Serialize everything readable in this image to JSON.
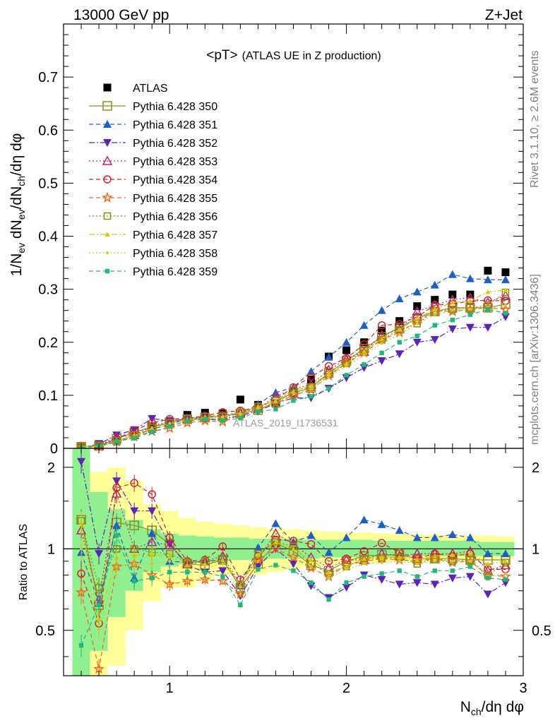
{
  "header": {
    "left": "13000 GeV pp",
    "right": "Z+Jet"
  },
  "side_labels": {
    "rivet": "Rivet 3.1.10, ≥ 2.6M events",
    "mcplots": "mcplots.cern.ch [arXiv:1306.3436]"
  },
  "watermark": "ATLAS_2019_I1736531",
  "colors": {
    "ATLAS": "#000000",
    "s350": "#8c8c1e",
    "s351": "#1f5fc4",
    "s352": "#5a24b4",
    "s353": "#b8277a",
    "s354": "#d4202a",
    "s355": "#ee6a1c",
    "s356": "#8a8a14",
    "s357": "#d6c800",
    "s358": "#c8c832",
    "s359": "#22b87c",
    "band_inner": "#90f090",
    "band_outer": "#ffff99"
  },
  "chart_data": [
    {
      "type": "scatter",
      "panel": "main",
      "title": "<pT> (ATLAS UE in Z production)",
      "title_main": "<pT>",
      "title_sub": "(ATLAS UE in Z production)",
      "ylabel": "1/N_ev dN_ev/dN_ch/dη dφ",
      "ylabel_parts": {
        "a": "1/N",
        "a_sub": "ev",
        "b": " dN",
        "b_sub": "ev",
        "c": "/dN",
        "c_sub": "ch",
        "d": "/dη dφ"
      },
      "xlim": [
        0.4,
        3.0
      ],
      "ylim": [
        0.0,
        0.8
      ],
      "yticks": [
        0,
        0.1,
        0.2,
        0.3,
        0.4,
        0.5,
        0.6,
        0.7
      ],
      "ytick_labels": [
        "0",
        "0.1",
        "0.2",
        "0.3",
        "0.4",
        "0.5",
        "0.6",
        "0.7"
      ],
      "legend_position": "top-left",
      "grid": false,
      "x": [
        0.5,
        0.6,
        0.7,
        0.8,
        0.9,
        1.0,
        1.1,
        1.2,
        1.3,
        1.4,
        1.5,
        1.6,
        1.7,
        1.8,
        1.9,
        2.0,
        2.1,
        2.2,
        2.3,
        2.4,
        2.5,
        2.6,
        2.7,
        2.8,
        2.9
      ],
      "series": [
        {
          "name": "ATLAS",
          "key": "ATLAS",
          "marker": "square",
          "dash": "none",
          "values": [
            0.002,
            0.008,
            0.014,
            0.025,
            0.04,
            0.05,
            0.063,
            0.067,
            0.066,
            0.092,
            0.082,
            0.085,
            0.108,
            0.13,
            0.173,
            0.185,
            0.2,
            0.222,
            0.24,
            0.268,
            0.28,
            0.29,
            0.29,
            0.335,
            0.332
          ]
        },
        {
          "name": "Pythia 6.428 350",
          "key": "s350",
          "marker": "square-open",
          "dash": "solid",
          "values": [
            0.003,
            0.005,
            0.018,
            0.03,
            0.041,
            0.048,
            0.055,
            0.058,
            0.06,
            0.066,
            0.072,
            0.088,
            0.105,
            0.114,
            0.142,
            0.165,
            0.188,
            0.21,
            0.228,
            0.245,
            0.258,
            0.265,
            0.265,
            0.265,
            0.272
          ]
        },
        {
          "name": "Pythia 6.428 351",
          "key": "s351",
          "marker": "triangle-up",
          "dash": "dashed",
          "values": [
            0.001,
            0.004,
            0.013,
            0.024,
            0.036,
            0.045,
            0.056,
            0.06,
            0.06,
            0.066,
            0.083,
            0.105,
            0.115,
            0.145,
            0.172,
            0.2,
            0.232,
            0.26,
            0.282,
            0.295,
            0.308,
            0.328,
            0.32,
            0.318,
            0.318
          ]
        },
        {
          "name": "Pythia 6.428 352",
          "key": "s352",
          "marker": "triangle-down",
          "dash": "dashdot",
          "values": [
            0.001,
            0.008,
            0.025,
            0.035,
            0.056,
            0.052,
            0.055,
            0.055,
            0.055,
            0.062,
            0.07,
            0.085,
            0.095,
            0.095,
            0.113,
            0.133,
            0.152,
            0.165,
            0.178,
            0.2,
            0.205,
            0.225,
            0.228,
            0.228,
            0.248
          ]
        },
        {
          "name": "Pythia 6.428 353",
          "key": "s353",
          "marker": "triangle-open",
          "dash": "dotted",
          "values": [
            0.003,
            0.005,
            0.022,
            0.025,
            0.042,
            0.051,
            0.056,
            0.06,
            0.062,
            0.068,
            0.075,
            0.098,
            0.112,
            0.12,
            0.148,
            0.168,
            0.182,
            0.213,
            0.225,
            0.258,
            0.27,
            0.28,
            0.284,
            0.275,
            0.288
          ]
        },
        {
          "name": "Pythia 6.428 354",
          "key": "s354",
          "marker": "circle-open",
          "dash": "dashed",
          "values": [
            0.003,
            0.004,
            0.018,
            0.034,
            0.048,
            0.055,
            0.057,
            0.061,
            0.068,
            0.071,
            0.077,
            0.092,
            0.115,
            0.135,
            0.155,
            0.17,
            0.196,
            0.232,
            0.234,
            0.248,
            0.27,
            0.272,
            0.278,
            0.279,
            0.278
          ]
        },
        {
          "name": "Pythia 6.428 355",
          "key": "s355",
          "marker": "star",
          "dash": "dashed",
          "values": [
            0.003,
            0.003,
            0.012,
            0.022,
            0.032,
            0.038,
            0.048,
            0.052,
            0.05,
            0.063,
            0.075,
            0.085,
            0.1,
            0.11,
            0.137,
            0.16,
            0.18,
            0.205,
            0.218,
            0.24,
            0.258,
            0.258,
            0.262,
            0.265,
            0.262
          ]
        },
        {
          "name": "Pythia 6.428 356",
          "key": "s356",
          "marker": "square-open-small",
          "dash": "dotted",
          "values": [
            0.003,
            0.006,
            0.014,
            0.025,
            0.039,
            0.048,
            0.056,
            0.06,
            0.06,
            0.068,
            0.079,
            0.09,
            0.11,
            0.115,
            0.14,
            0.16,
            0.185,
            0.205,
            0.223,
            0.235,
            0.258,
            0.262,
            0.265,
            0.27,
            0.294
          ]
        },
        {
          "name": "Pythia 6.428 357",
          "key": "s357",
          "marker": "tri-small",
          "dash": "dashdot",
          "values": [
            0.003,
            0.004,
            0.013,
            0.024,
            0.038,
            0.047,
            0.055,
            0.059,
            0.06,
            0.067,
            0.078,
            0.09,
            0.108,
            0.118,
            0.142,
            0.16,
            0.183,
            0.206,
            0.224,
            0.245,
            0.262,
            0.275,
            0.278,
            0.295,
            0.298
          ]
        },
        {
          "name": "Pythia 6.428 358",
          "key": "s358",
          "marker": "dot",
          "dash": "dotted",
          "values": [
            0.002,
            0.004,
            0.012,
            0.022,
            0.035,
            0.045,
            0.053,
            0.057,
            0.058,
            0.063,
            0.074,
            0.087,
            0.102,
            0.112,
            0.135,
            0.155,
            0.176,
            0.198,
            0.215,
            0.235,
            0.252,
            0.26,
            0.262,
            0.266,
            0.27
          ]
        },
        {
          "name": "Pythia 6.428 359",
          "key": "s359",
          "marker": "square-small",
          "dash": "dashed",
          "values": [
            0.001,
            0.005,
            0.013,
            0.019,
            0.031,
            0.041,
            0.052,
            0.055,
            0.052,
            0.057,
            0.069,
            0.074,
            0.09,
            0.098,
            0.113,
            0.138,
            0.158,
            0.18,
            0.2,
            0.212,
            0.232,
            0.242,
            0.252,
            0.262,
            0.255
          ]
        }
      ]
    },
    {
      "type": "scatter",
      "panel": "ratio",
      "ylabel": "Ratio to ATLAS",
      "xlabel": "N_ch/dη dφ",
      "xlabel_parts": {
        "a": "N",
        "a_sub": "ch",
        "b": "/dη dφ"
      },
      "xlim": [
        0.4,
        3.0
      ],
      "ylim": [
        0.34,
        2.35
      ],
      "yscale": "log",
      "xticks": [
        1,
        2,
        3
      ],
      "xtick_labels": [
        "1",
        "2",
        "3"
      ],
      "yticks": [
        0.5,
        1,
        2
      ],
      "ytick_labels": [
        "0.5",
        "1",
        "2"
      ],
      "reference_line": 1,
      "x": [
        0.5,
        0.6,
        0.7,
        0.8,
        0.9,
        1.0,
        1.1,
        1.2,
        1.3,
        1.4,
        1.5,
        1.6,
        1.7,
        1.8,
        1.9,
        2.0,
        2.1,
        2.2,
        2.3,
        2.4,
        2.5,
        2.6,
        2.7,
        2.8,
        2.9
      ],
      "band_outer": {
        "lo": [
          0.34,
          0.34,
          0.37,
          0.5,
          0.64,
          0.72,
          0.72,
          0.76,
          0.8,
          0.8,
          0.8,
          0.82,
          0.84,
          0.86,
          0.87,
          0.88,
          0.88,
          0.89,
          0.9,
          0.9,
          0.9,
          0.91,
          0.91,
          0.91,
          0.92
        ],
        "hi": [
          2.35,
          1.92,
          2.0,
          1.78,
          1.46,
          1.38,
          1.3,
          1.26,
          1.24,
          1.22,
          1.2,
          1.19,
          1.18,
          1.17,
          1.16,
          1.15,
          1.15,
          1.14,
          1.14,
          1.13,
          1.13,
          1.12,
          1.12,
          1.12,
          1.11
        ]
      },
      "band_inner": {
        "lo": [
          0.34,
          0.42,
          0.56,
          0.7,
          0.82,
          0.86,
          0.88,
          0.89,
          0.9,
          0.91,
          0.91,
          0.92,
          0.92,
          0.92,
          0.93,
          0.93,
          0.93,
          0.93,
          0.93,
          0.94,
          0.94,
          0.94,
          0.94,
          0.94,
          0.94
        ],
        "hi": [
          2.35,
          1.62,
          1.4,
          1.28,
          1.18,
          1.14,
          1.12,
          1.11,
          1.1,
          1.1,
          1.09,
          1.09,
          1.09,
          1.08,
          1.08,
          1.08,
          1.08,
          1.07,
          1.07,
          1.07,
          1.07,
          1.07,
          1.07,
          1.06,
          1.06
        ]
      },
      "series": [
        {
          "name": "Pythia 6.428 350",
          "key": "s350",
          "marker": "square-open",
          "dash": "solid",
          "values": [
            1.28,
            0.62,
            1.25,
            1.22,
            1.17,
            1.04,
            0.88,
            0.87,
            0.91,
            0.72,
            0.88,
            1.05,
            0.98,
            0.87,
            0.83,
            0.9,
            0.94,
            0.95,
            0.95,
            0.92,
            0.92,
            0.92,
            0.91,
            0.91,
            0.91
          ]
        },
        {
          "name": "Pythia 6.428 351",
          "key": "s351",
          "marker": "triangle-up",
          "dash": "dashed",
          "values": [
            0.97,
            0.63,
            1.22,
            0.78,
            1.14,
            0.9,
            0.89,
            0.9,
            0.91,
            0.73,
            1.01,
            1.24,
            1.06,
            1.12,
            0.97,
            1.1,
            1.28,
            1.23,
            1.17,
            1.1,
            1.1,
            1.13,
            1.1,
            0.96,
            0.96
          ]
        },
        {
          "name": "Pythia 6.428 352",
          "key": "s352",
          "marker": "triangle-down",
          "dash": "dashdot",
          "values": [
            2.1,
            0.96,
            1.78,
            1.38,
            1.38,
            1.04,
            0.87,
            0.82,
            0.83,
            0.67,
            0.86,
            1.0,
            0.88,
            0.73,
            0.66,
            0.72,
            0.8,
            0.77,
            0.74,
            0.75,
            0.74,
            0.78,
            0.79,
            0.68,
            0.75
          ]
        },
        {
          "name": "Pythia 6.428 353",
          "key": "s353",
          "marker": "triangle-open",
          "dash": "dotted",
          "values": [
            1.17,
            0.65,
            1.6,
            1.0,
            1.06,
            1.03,
            0.88,
            0.9,
            0.94,
            0.74,
            0.92,
            1.14,
            1.04,
            0.93,
            0.85,
            0.91,
            0.91,
            0.96,
            0.94,
            0.96,
            0.96,
            0.96,
            0.98,
            0.83,
            0.87
          ]
        },
        {
          "name": "Pythia 6.428 354",
          "key": "s354",
          "marker": "circle-open",
          "dash": "dashed",
          "values": [
            0.81,
            0.53,
            1.68,
            1.75,
            1.59,
            1.1,
            0.9,
            0.91,
            1.02,
            0.77,
            0.94,
            1.08,
            1.07,
            1.04,
            0.9,
            0.92,
            0.98,
            1.05,
            0.97,
            0.92,
            0.96,
            0.94,
            0.96,
            0.84,
            0.84
          ]
        },
        {
          "name": "Pythia 6.428 355",
          "key": "s355",
          "marker": "star",
          "dash": "dashed",
          "values": [
            0.69,
            0.36,
            0.86,
            0.88,
            0.8,
            0.74,
            0.76,
            0.77,
            0.76,
            0.68,
            0.91,
            1.0,
            0.93,
            0.85,
            0.79,
            0.87,
            0.9,
            0.92,
            0.91,
            0.9,
            0.92,
            0.89,
            0.9,
            0.8,
            0.79
          ]
        },
        {
          "name": "Pythia 6.428 356",
          "key": "s356",
          "marker": "square-open-small",
          "dash": "dotted",
          "values": [
            1.27,
            0.72,
            1.0,
            1.0,
            0.97,
            0.96,
            0.89,
            0.9,
            0.91,
            0.74,
            0.96,
            1.06,
            1.02,
            0.88,
            0.81,
            0.86,
            0.92,
            0.92,
            0.93,
            0.88,
            0.92,
            0.9,
            0.91,
            0.8,
            0.89
          ]
        },
        {
          "name": "Pythia 6.428 357",
          "key": "s357",
          "marker": "tri-small",
          "dash": "dashdot",
          "values": [
            1.25,
            0.55,
            0.93,
            0.95,
            0.95,
            0.94,
            0.87,
            0.88,
            0.91,
            0.73,
            0.95,
            1.06,
            1.0,
            0.91,
            0.82,
            0.86,
            0.92,
            0.93,
            0.93,
            0.91,
            0.94,
            0.95,
            0.96,
            0.88,
            0.9
          ]
        },
        {
          "name": "Pythia 6.428 358",
          "key": "s358",
          "marker": "dot",
          "dash": "dotted",
          "values": [
            1.0,
            0.5,
            0.86,
            0.88,
            0.88,
            0.9,
            0.84,
            0.85,
            0.88,
            0.68,
            0.9,
            1.02,
            0.94,
            0.86,
            0.78,
            0.84,
            0.88,
            0.89,
            0.9,
            0.88,
            0.9,
            0.9,
            0.9,
            0.79,
            0.81
          ]
        },
        {
          "name": "Pythia 6.428 359",
          "key": "s359",
          "marker": "square-small",
          "dash": "dashed",
          "values": [
            0.44,
            0.62,
            1.12,
            0.76,
            0.78,
            0.82,
            0.82,
            0.82,
            0.79,
            0.62,
            0.84,
            0.87,
            0.83,
            0.75,
            0.65,
            0.75,
            0.79,
            0.81,
            0.83,
            0.79,
            0.83,
            0.83,
            0.86,
            0.78,
            0.77
          ]
        }
      ]
    }
  ]
}
